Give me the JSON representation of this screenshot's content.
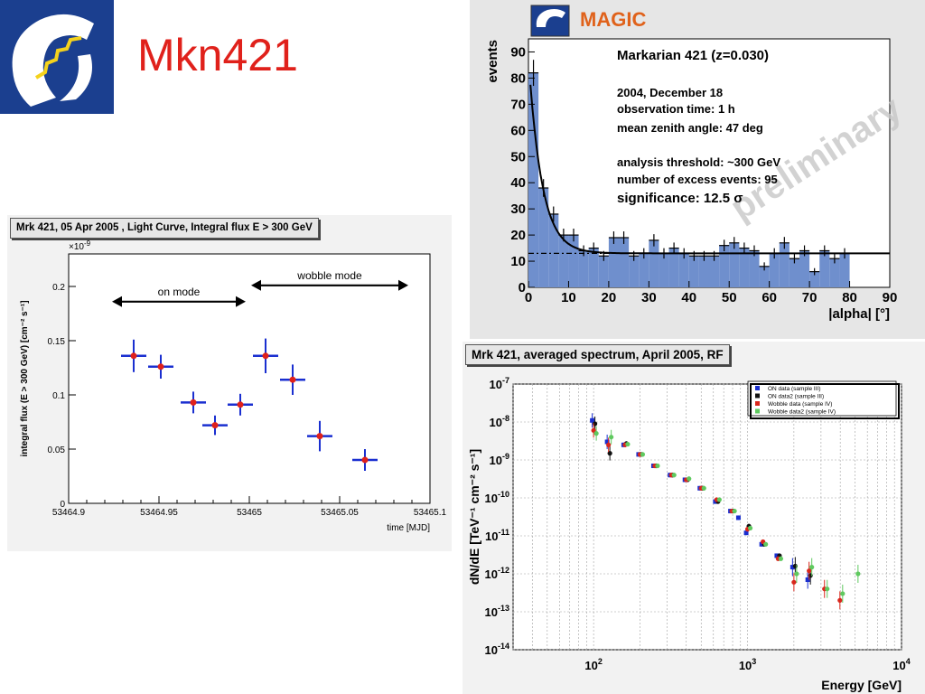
{
  "slide": {
    "title": "Mkn421"
  },
  "alpha_plot": {
    "brand": "MAGIC",
    "watermark": "preliminary",
    "annotations": [
      "Markarian 421 (z=0.030)",
      "2004, December 18",
      "observation time: 1 h",
      "mean zenith angle: 47 deg",
      "analysis threshold:  ~300 GeV",
      "number of excess events: 95",
      "significance: 12.5 σ"
    ]
  },
  "lightcurve": {
    "panel_title": "Mrk 421, 05 Apr 2005 , Light Curve, Integral flux E > 300 GeV",
    "exponent_label": "×10",
    "exponent_sup": "-9",
    "arrows": [
      "on mode",
      "wobble mode"
    ]
  },
  "spectrum": {
    "panel_title": "Mrk 421, averaged spectrum, April 2005, RF"
  },
  "chart_data": [
    {
      "type": "bar",
      "xlabel": "|alpha|  [°]",
      "ylabel": "events",
      "xlim": [
        0,
        90
      ],
      "ylim": [
        0,
        95
      ],
      "xticks": [
        0,
        10,
        20,
        30,
        40,
        50,
        60,
        70,
        80,
        90
      ],
      "yticks": [
        0,
        10,
        20,
        30,
        40,
        50,
        60,
        70,
        80,
        90
      ],
      "bin_width": 2.5,
      "values": [
        82,
        38,
        28,
        20,
        20,
        14,
        15,
        12,
        19,
        19,
        12,
        13,
        18,
        13,
        15,
        13,
        12,
        12,
        12,
        16,
        17,
        15,
        14,
        8,
        13,
        17,
        11,
        14,
        6,
        14,
        11,
        13
      ],
      "background_level": 13,
      "fit": "exponential + constant"
    },
    {
      "type": "scatter",
      "xlabel": "time [MJD]",
      "ylabel": "integral flux (E > 300 GeV) [cm⁻² s⁻¹]",
      "xlim": [
        53464.9,
        53465.1
      ],
      "ylim": [
        0,
        0.23
      ],
      "xticks": [
        "53464.9",
        "53464.95",
        "53465",
        "53465.05",
        "53465.1"
      ],
      "yticks": [
        "0",
        "0.05",
        "0.1",
        "0.15",
        "0.2"
      ],
      "points": [
        {
          "x": 53464.936,
          "y": 0.136,
          "xerr": 0.007,
          "yerr": 0.015
        },
        {
          "x": 53464.951,
          "y": 0.126,
          "xerr": 0.007,
          "yerr": 0.011
        },
        {
          "x": 53464.969,
          "y": 0.093,
          "xerr": 0.007,
          "yerr": 0.01
        },
        {
          "x": 53464.981,
          "y": 0.072,
          "xerr": 0.007,
          "yerr": 0.009
        },
        {
          "x": 53464.995,
          "y": 0.091,
          "xerr": 0.007,
          "yerr": 0.01
        },
        {
          "x": 53465.009,
          "y": 0.136,
          "xerr": 0.007,
          "yerr": 0.016
        },
        {
          "x": 53465.024,
          "y": 0.114,
          "xerr": 0.007,
          "yerr": 0.014
        },
        {
          "x": 53465.039,
          "y": 0.062,
          "xerr": 0.007,
          "yerr": 0.014
        },
        {
          "x": 53465.064,
          "y": 0.04,
          "xerr": 0.007,
          "yerr": 0.01
        }
      ],
      "arrow_ranges": {
        "on mode": [
          53464.924,
          53464.998
        ],
        "wobble mode": [
          53465.001,
          53465.088
        ]
      }
    },
    {
      "type": "scatter",
      "log_x": true,
      "log_y": true,
      "xlabel": "Energy [GeV]",
      "ylabel": "dN/dE [TeV⁻¹ cm⁻² s⁻¹]",
      "xlim": [
        30,
        10000
      ],
      "ylim": [
        1e-14,
        1e-07
      ],
      "xticks": [
        100,
        1000,
        10000
      ],
      "yticks": [
        1e-07,
        1e-08,
        1e-09,
        1e-10,
        1e-11,
        1e-12,
        1e-13,
        1e-14
      ],
      "legend_position": "top-right",
      "series": [
        {
          "name": "ON data (sample III)",
          "color": "#1a2fd0",
          "points": [
            [
              100,
              1.1e-08
            ],
            [
              125,
              3e-09
            ],
            [
              160,
              2.5e-09
            ],
            [
              200,
              1.4e-09
            ],
            [
              250,
              7e-10
            ],
            [
              320,
              4e-10
            ],
            [
              400,
              3e-10
            ],
            [
              500,
              1.8e-10
            ],
            [
              630,
              8e-11
            ],
            [
              790,
              4.5e-11
            ],
            [
              890,
              3e-11
            ],
            [
              1000,
              1.2e-11
            ],
            [
              1260,
              6e-12
            ],
            [
              1580,
              3e-12
            ],
            [
              2000,
              1.5e-12
            ],
            [
              2510,
              7e-13
            ]
          ]
        },
        {
          "name": "ON data2 (sample III)",
          "color": "#111111",
          "points": [
            [
              100,
              9e-09
            ],
            [
              125,
              1.5e-09
            ],
            [
              160,
              2.7e-09
            ],
            [
              200,
              1.4e-09
            ],
            [
              250,
              7e-10
            ],
            [
              320,
              4e-10
            ],
            [
              400,
              3e-10
            ],
            [
              500,
              1.8e-10
            ],
            [
              630,
              8e-11
            ],
            [
              790,
              4.5e-11
            ],
            [
              1000,
              1.8e-11
            ],
            [
              1260,
              6e-12
            ],
            [
              1580,
              3e-12
            ],
            [
              2000,
              1.6e-12
            ],
            [
              2510,
              9e-13
            ]
          ]
        },
        {
          "name": "Wobble data (sample IV)",
          "color": "#d9261c",
          "points": [
            [
              100,
              6e-09
            ],
            [
              125,
              2.5e-09
            ],
            [
              160,
              2.5e-09
            ],
            [
              200,
              1.4e-09
            ],
            [
              250,
              7e-10
            ],
            [
              320,
              4e-10
            ],
            [
              400,
              3e-10
            ],
            [
              500,
              1.8e-10
            ],
            [
              630,
              9e-11
            ],
            [
              790,
              4.5e-11
            ],
            [
              1000,
              1.5e-11
            ],
            [
              1260,
              7e-12
            ],
            [
              1580,
              2.5e-12
            ],
            [
              2000,
              6e-13
            ],
            [
              2510,
              1.2e-12
            ],
            [
              3160,
              4e-13
            ],
            [
              3980,
              2e-13
            ]
          ]
        },
        {
          "name": "Wobble data2 (sample IV)",
          "color": "#5fc95f",
          "points": [
            [
              100,
              5e-09
            ],
            [
              125,
              4e-09
            ],
            [
              160,
              2.6e-09
            ],
            [
              200,
              1.4e-09
            ],
            [
              250,
              7e-10
            ],
            [
              320,
              4e-10
            ],
            [
              400,
              3.2e-10
            ],
            [
              500,
              1.8e-10
            ],
            [
              630,
              9e-11
            ],
            [
              790,
              4.5e-11
            ],
            [
              1000,
              1.6e-11
            ],
            [
              1260,
              6e-12
            ],
            [
              1580,
              2.5e-12
            ],
            [
              2000,
              1e-12
            ],
            [
              2510,
              1.5e-12
            ],
            [
              3160,
              4e-13
            ],
            [
              3980,
              3e-13
            ],
            [
              5010,
              1e-12
            ]
          ]
        }
      ]
    }
  ]
}
